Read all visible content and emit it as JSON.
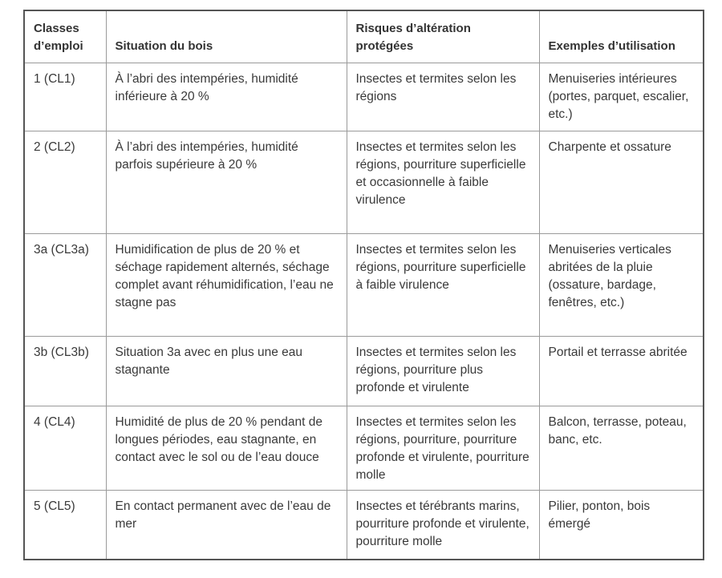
{
  "headers": [
    "Classes d’emploi",
    "Situation du bois",
    "Risques d’altération protégées",
    "Exemples d’utilisation"
  ],
  "rows": [
    [
      "1 (CL1)",
      "À l’abri des intempéries, humidité inférieure à 20 %",
      "Insectes et termites selon les régions",
      "Menuiseries intérieures (portes, parquet, escalier, etc.)"
    ],
    [
      "2 (CL2)",
      "À l’abri des intempéries, humidité parfois supérieure à 20 %",
      "Insectes et termites selon les régions, pourriture superficielle et occasionnelle à faible virulence",
      "Charpente et ossature"
    ],
    [
      "3a (CL3a)",
      "Humidification de plus de 20 % et séchage rapidement alternés, séchage complet avant réhumidification, l’eau ne stagne pas",
      "Insectes et termites selon les régions, pourriture superficielle à faible virulence",
      "Menuiseries verticales abritées de la pluie (ossature, bardage, fenêtres, etc.)"
    ],
    [
      "3b (CL3b)",
      "Situation 3a avec en plus une eau stagnante",
      "Insectes et termites selon les régions, pourriture plus profonde et virulente",
      "Portail et terrasse abritée"
    ],
    [
      "4 (CL4)",
      "Humidité de plus de 20 % pendant de longues périodes, eau stagnante, en contact avec le sol ou de l’eau douce",
      "Insectes et termites selon les régions, pourriture, pourriture profonde et virulente, pourriture molle",
      "Balcon, terrasse, poteau, banc, etc."
    ],
    [
      "5 (CL5)",
      "En contact permanent avec de l’eau de mer",
      "Insectes et térébrants marins, pourriture profonde et virulente, pourriture molle",
      "Pilier, ponton, bois émergé"
    ]
  ]
}
